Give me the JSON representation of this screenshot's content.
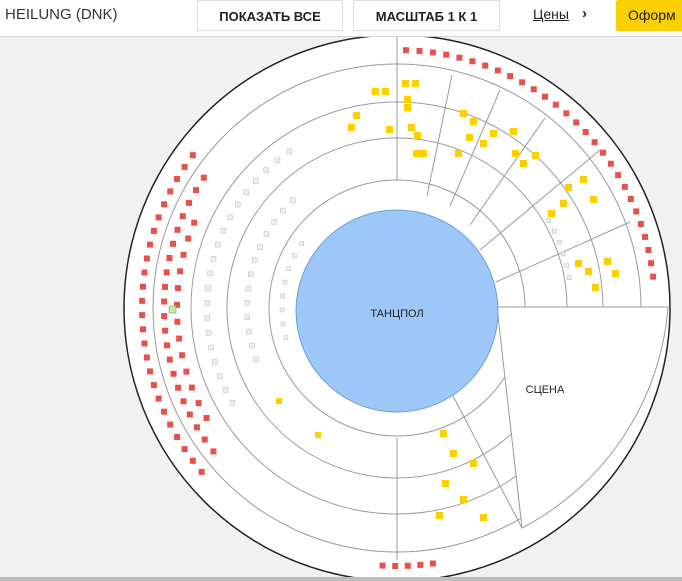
{
  "header": {
    "event_title": "HEILUNG (DNK)",
    "show_all_label": "ПОКАЗАТЬ ВСЕ",
    "scale_label": "МАСШТАБ 1 К 1",
    "prices_label": "Цены",
    "checkout_label": "Оформ"
  },
  "icons": {
    "prices": "chevron-right-icon"
  },
  "hall": {
    "dance_floor_label": "ТАНЦПОЛ",
    "stage_label": "СЦЕНА"
  },
  "colors": {
    "seat_red": "#e8514b",
    "seat_yellow": "#fcd000",
    "seat_gray": "#eeeeee",
    "seat_green": "#c9e8a0",
    "dance_floor": "#9dc7f7",
    "accent": "#fcd000"
  }
}
